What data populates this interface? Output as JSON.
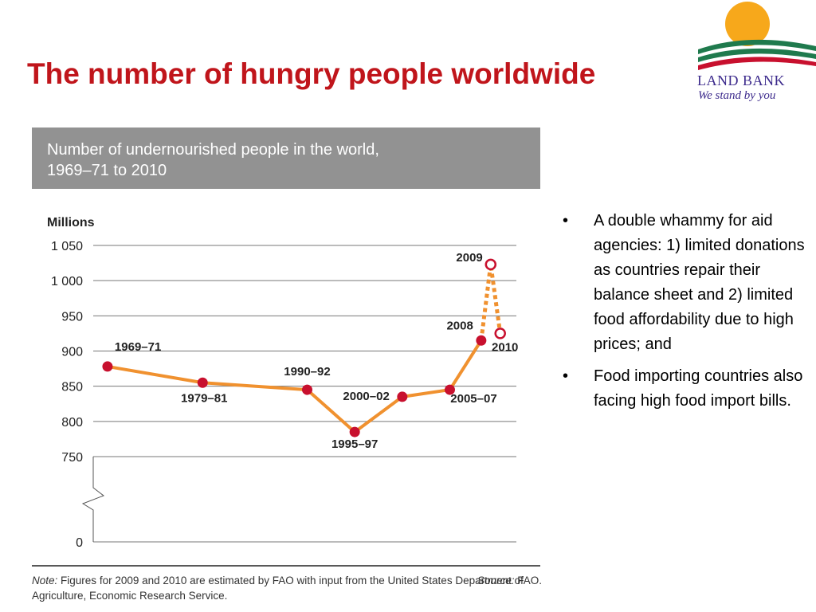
{
  "slide": {
    "title": "The number of hungry people worldwide",
    "logo": {
      "name": "LAND BANK",
      "tagline": "We stand by you"
    },
    "bullets": [
      "A double whammy for aid agencies: 1) limited donations as countries repair their balance sheet and 2) limited food affordability due to high prices; and",
      "Food importing countries also facing high food import bills."
    ],
    "bullet_glyph": "•"
  },
  "chart_data": {
    "type": "line",
    "title_lines": [
      "Number of undernourished people in the world,",
      "1969–71 to 2010"
    ],
    "ylabel": "Millions",
    "ylim": [
      750,
      1050
    ],
    "y_break": true,
    "y_ticks": [
      {
        "value": 1050,
        "label": "1 050"
      },
      {
        "value": 1000,
        "label": "1 000"
      },
      {
        "value": 950,
        "label": "950"
      },
      {
        "value": 900,
        "label": "900"
      },
      {
        "value": 850,
        "label": "850"
      },
      {
        "value": 800,
        "label": "800"
      },
      {
        "value": 750,
        "label": "750"
      },
      {
        "value": 0,
        "label": "0"
      }
    ],
    "grid": true,
    "colors": {
      "line": "#f0912f",
      "point": "#c8102e",
      "estimate_point_fill": "#ffffff",
      "header_bg": "#929292"
    },
    "points": [
      {
        "label": "1969–71",
        "value": 878,
        "year": 1970,
        "estimate": false
      },
      {
        "label": "1979–81",
        "value": 855,
        "year": 1980,
        "estimate": false
      },
      {
        "label": "1990–92",
        "value": 845,
        "year": 1991,
        "estimate": false
      },
      {
        "label": "1995–97",
        "value": 785,
        "year": 1996,
        "estimate": false
      },
      {
        "label": "2000–02",
        "value": 835,
        "year": 2001,
        "estimate": false
      },
      {
        "label": "2005–07",
        "value": 845,
        "year": 2006,
        "estimate": false
      },
      {
        "label": "2008",
        "value": 915,
        "year": 2009.3,
        "estimate": false
      },
      {
        "label": "2009",
        "value": 1023,
        "year": 2010.3,
        "estimate": true
      },
      {
        "label": "2010",
        "value": 925,
        "year": 2011.3,
        "estimate": true
      }
    ],
    "note_label": "Note:",
    "note_text": "Figures for 2009 and 2010 are estimated by FAO with input from the United States Department of Agriculture, Economic Research Service.",
    "source_label": "Source:",
    "source_text": "FAO."
  }
}
